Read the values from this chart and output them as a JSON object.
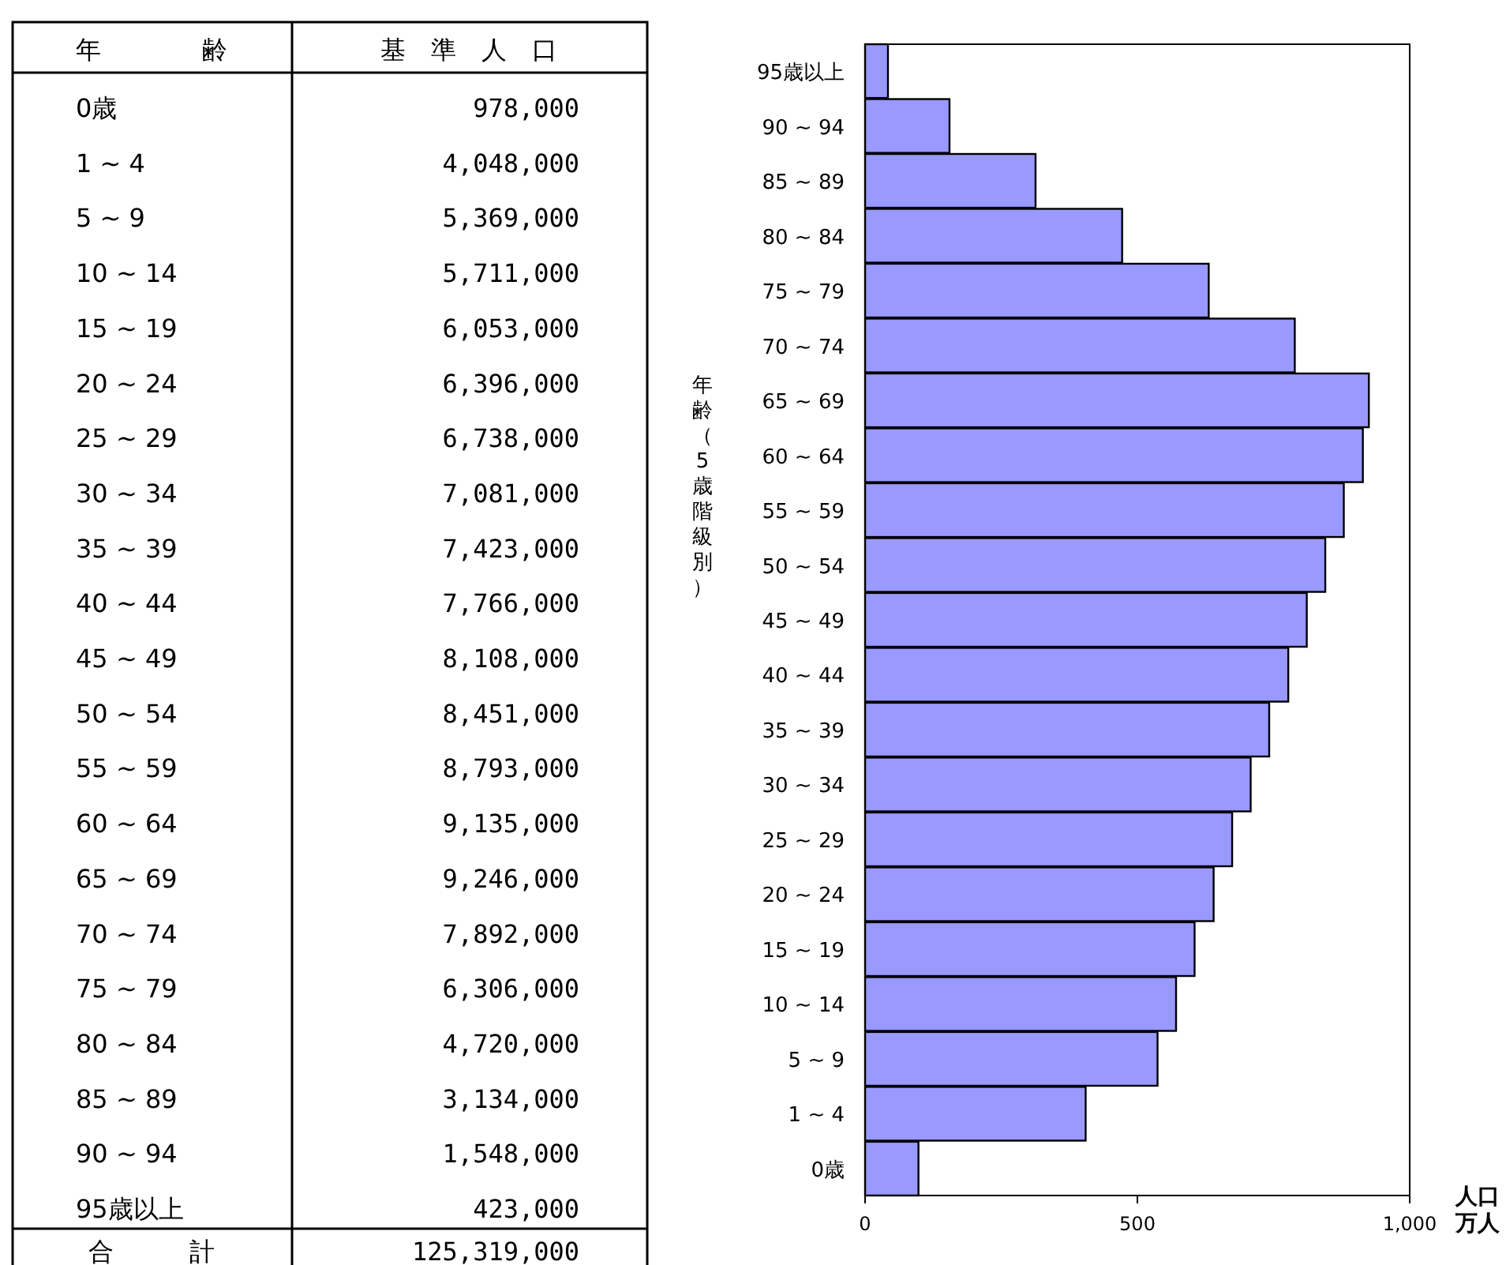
{
  "chart_data": [
    {
      "type": "other",
      "annotations": [
        "年　　　　齢",
        "基　準　人　口",
        "0歳",
        "978,000",
        "1 ~ 4",
        "4,048,000",
        "5 ~ 9",
        "5,369,000",
        "10 ~ 14",
        "5,711,000",
        "15 ~ 19",
        "6,053,000",
        "20 ~ 24",
        "6,396,000",
        "25 ~ 29",
        "6,738,000",
        "30 ~ 34",
        "7,081,000",
        "35 ~ 39",
        "7,423,000",
        "40 ~ 44",
        "7,766,000",
        "45 ~ 49",
        "8,108,000",
        "50 ~ 54",
        "8,451,000",
        "55 ~ 59",
        "8,793,000",
        "60 ~ 64",
        "9,135,000",
        "65 ~ 69",
        "9,246,000",
        "70 ~ 74",
        "7,892,000",
        "75 ~ 79",
        "6,306,000",
        "80 ~ 84",
        "4,720,000",
        "85 ~ 89",
        "3,134,000",
        "90 ~ 94",
        "1,548,000",
        "95歳以上",
        "423,000",
        "合　　　計",
        "125,319,000"
      ]
    },
    {
      "type": "bar",
      "orientation": "horizontal",
      "ylabel": "年齢（5歳階級別）",
      "xlabel": "人口万人",
      "categories": [
        "95歳以上",
        "90 ~ 94",
        "85 ~ 89",
        "80 ~ 84",
        "75 ~ 79",
        "70 ~ 74",
        "65 ~ 69",
        "60 ~ 64",
        "55 ~ 59",
        "50 ~ 54",
        "45 ~ 49",
        "40 ~ 44",
        "35 ~ 39",
        "30 ~ 34",
        "25 ~ 29",
        "20 ~ 24",
        "15 ~ 19",
        "10 ~ 14",
        "5 ~ 9",
        "1 ~ 4",
        "0歳"
      ],
      "values": [
        42,
        155,
        313,
        472,
        631,
        789,
        925,
        914,
        879,
        845,
        811,
        777,
        742,
        708,
        674,
        640,
        605,
        571,
        537,
        405,
        98
      ],
      "color": "#9999ff",
      "xlim": [
        0,
        1000
      ],
      "xticks": [
        0,
        500,
        {
          "value": 1000,
          "label": "1,000"
        }
      ],
      "grid": false
    }
  ]
}
